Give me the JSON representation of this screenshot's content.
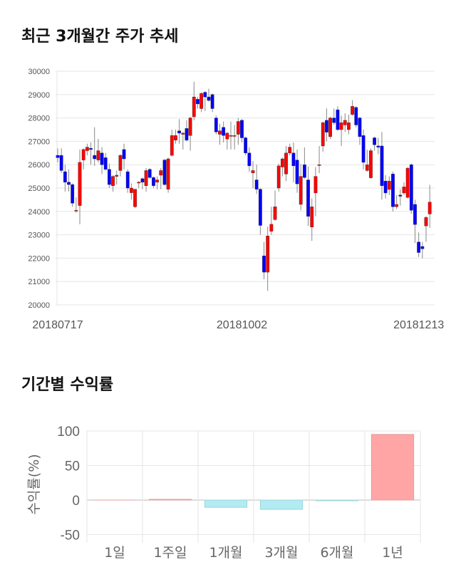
{
  "section1_title": "최근 3개월간 주가 추세",
  "section2_title": "기간별 수익률",
  "chart_data": [
    {
      "type": "candlestick",
      "ylim": [
        20000,
        30000
      ],
      "yticks": [
        20000,
        21000,
        22000,
        23000,
        24000,
        25000,
        26000,
        27000,
        28000,
        29000,
        30000
      ],
      "xtick_labels": [
        {
          "index": 0,
          "label": "20180717"
        },
        {
          "index": 50,
          "label": "20181002"
        },
        {
          "index": 98,
          "label": "20181213"
        }
      ],
      "up_color": "#ff0000",
      "down_color": "#0000ff",
      "grid": true,
      "ohlc": [
        [
          26400,
          26700,
          26100,
          26300
        ],
        [
          26400,
          26700,
          25650,
          25750
        ],
        [
          25700,
          26000,
          24850,
          25250
        ],
        [
          25250,
          25800,
          24850,
          25150
        ],
        [
          25150,
          25200,
          24200,
          24350
        ],
        [
          24050,
          24600,
          23950,
          24050
        ],
        [
          24250,
          26650,
          23450,
          26100
        ],
        [
          26200,
          26700,
          25800,
          26650
        ],
        [
          26600,
          26900,
          26400,
          26750
        ],
        [
          26700,
          26950,
          26000,
          26650
        ],
        [
          26400,
          27600,
          25950,
          26250
        ],
        [
          26200,
          27100,
          26100,
          26600
        ],
        [
          26500,
          26750,
          25600,
          26000
        ],
        [
          26300,
          26500,
          25750,
          25800
        ],
        [
          25800,
          26050,
          25000,
          25150
        ],
        [
          25100,
          25550,
          24850,
          25500
        ],
        [
          25500,
          25750,
          25150,
          25550
        ],
        [
          25750,
          26450,
          25500,
          26400
        ],
        [
          26650,
          26900,
          25800,
          26250
        ],
        [
          25700,
          25800,
          24800,
          25000
        ],
        [
          24800,
          25200,
          24500,
          25000
        ],
        [
          24200,
          24950,
          24150,
          24950
        ],
        [
          25250,
          25300,
          25000,
          25250
        ],
        [
          25400,
          25450,
          24950,
          25250
        ],
        [
          25100,
          25850,
          24850,
          25750
        ],
        [
          25800,
          25850,
          25400,
          25450
        ],
        [
          25450,
          25500,
          25000,
          25100
        ],
        [
          25250,
          25500,
          24950,
          25350
        ],
        [
          25550,
          25850,
          24950,
          25750
        ],
        [
          26200,
          26250,
          25100,
          25150
        ],
        [
          24950,
          26300,
          24800,
          26250
        ],
        [
          26400,
          27500,
          26350,
          27250
        ],
        [
          27050,
          27500,
          26900,
          27250
        ],
        [
          27450,
          27950,
          26900,
          27350
        ],
        [
          27300,
          27400,
          26650,
          27350
        ],
        [
          27550,
          27900,
          27000,
          27050
        ],
        [
          27250,
          28050,
          26600,
          28000
        ],
        [
          28050,
          29550,
          27900,
          28900
        ],
        [
          28800,
          28900,
          28400,
          28600
        ],
        [
          28400,
          29100,
          28250,
          29050
        ],
        [
          29100,
          29150,
          28300,
          28900
        ],
        [
          28900,
          29250,
          28700,
          28750
        ],
        [
          29000,
          29050,
          28250,
          28400
        ],
        [
          28000,
          28100,
          27300,
          27400
        ],
        [
          27300,
          27750,
          26850,
          27450
        ],
        [
          27600,
          27850,
          26950,
          27250
        ],
        [
          27100,
          27400,
          26650,
          27350
        ],
        [
          27250,
          27850,
          26650,
          27250
        ],
        [
          27250,
          27700,
          26650,
          27250
        ],
        [
          27300,
          28000,
          26850,
          27850
        ],
        [
          27900,
          27950,
          26950,
          27150
        ],
        [
          27150,
          27200,
          26400,
          26500
        ],
        [
          26500,
          26750,
          25700,
          25950
        ],
        [
          25650,
          26150,
          25000,
          25750
        ],
        [
          25350,
          26000,
          24750,
          24950
        ],
        [
          24950,
          25000,
          23000,
          23400
        ],
        [
          22100,
          22700,
          21100,
          21400
        ],
        [
          21400,
          23350,
          20600,
          22950
        ],
        [
          23150,
          24200,
          23000,
          23450
        ],
        [
          23650,
          24900,
          23600,
          24200
        ],
        [
          25000,
          26050,
          24850,
          25950
        ],
        [
          25900,
          26300,
          25500,
          26250
        ],
        [
          25600,
          26800,
          25300,
          26500
        ],
        [
          26500,
          26900,
          26400,
          26750
        ],
        [
          26500,
          26950,
          25250,
          25950
        ],
        [
          26200,
          26650,
          24800,
          25180
        ],
        [
          24300,
          26030,
          24045,
          25500
        ],
        [
          26000,
          26740,
          25400,
          25450
        ],
        [
          25350,
          25930,
          23380,
          23790
        ],
        [
          23330,
          24550,
          22740,
          24200
        ],
        [
          24790,
          25900,
          23790,
          25500
        ],
        [
          26000,
          26800,
          25640,
          26000
        ],
        [
          26800,
          27850,
          26560,
          27800
        ],
        [
          27900,
          28410,
          27000,
          27390
        ],
        [
          27200,
          28050,
          27100,
          28000
        ],
        [
          28000,
          28400,
          27700,
          27800
        ],
        [
          28350,
          28500,
          27450,
          27500
        ],
        [
          27500,
          28100,
          26800,
          27800
        ],
        [
          27700,
          28200,
          27400,
          27900
        ],
        [
          27500,
          28150,
          27300,
          27800
        ],
        [
          28150,
          28760,
          28100,
          28500
        ],
        [
          28450,
          28500,
          27600,
          27700
        ],
        [
          28000,
          28050,
          26850,
          27200
        ],
        [
          27250,
          27500,
          25800,
          26100
        ],
        [
          25750,
          26640,
          25700,
          26000
        ],
        [
          25440,
          26700,
          25400,
          26600
        ],
        [
          27150,
          27200,
          26600,
          26850
        ],
        [
          26800,
          27150,
          26450,
          26750
        ],
        [
          26800,
          27400,
          24500,
          25100
        ],
        [
          25300,
          25550,
          24550,
          24790
        ],
        [
          24940,
          25500,
          24700,
          25300
        ],
        [
          25600,
          25700,
          24000,
          24200
        ],
        [
          24200,
          24700,
          24100,
          24300
        ],
        [
          24700,
          24950,
          24250,
          24650
        ],
        [
          24790,
          25250,
          24700,
          25050
        ],
        [
          24600,
          25900,
          24550,
          25850
        ],
        [
          26000,
          26050,
          23900,
          24050
        ],
        [
          24300,
          24500,
          22650,
          23440
        ],
        [
          22690,
          23100,
          22050,
          22240
        ],
        [
          22500,
          22690,
          21990,
          22400
        ],
        [
          23380,
          23800,
          22700,
          23740
        ],
        [
          23890,
          25140,
          23300,
          24400
        ]
      ]
    },
    {
      "type": "bar",
      "ylabel": "수익률(%)",
      "categories": [
        "1일",
        "1주일",
        "1개월",
        "3개월",
        "6개월",
        "1년"
      ],
      "values": [
        0,
        1,
        -10.5,
        -13.5,
        -1,
        95
      ],
      "ylim": [
        -55,
        100
      ],
      "yticks": [
        -50,
        0,
        50,
        100
      ],
      "positive_color": "#ffa5a5",
      "negative_color": "#b2ebf2",
      "grid": true
    }
  ]
}
